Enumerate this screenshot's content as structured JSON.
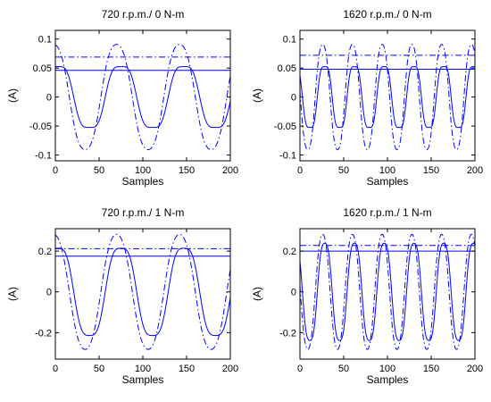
{
  "chart_data": [
    {
      "type": "line",
      "title": "720 r.p.m./ 0 N-m",
      "xlabel": "Samples",
      "ylabel": "(A)",
      "xlim": [
        0,
        200
      ],
      "ylim": [
        -0.11,
        0.115
      ],
      "xticks": [
        "0",
        "50",
        "100",
        "150",
        "200"
      ],
      "yticks": [
        "0.1",
        "0.05",
        "0",
        "-0.05",
        "-0.1"
      ],
      "ytick_values": [
        0.1,
        0.05,
        0,
        -0.05,
        -0.1
      ],
      "grid": false,
      "series": [
        {
          "style": "solid",
          "kind": "wave",
          "amplitude": 0.063,
          "period": 72,
          "phase_deg": 75,
          "distortion": 0.12
        },
        {
          "style": "dashdot",
          "kind": "wave",
          "amplitude": 0.098,
          "period": 72,
          "phase_deg": 100,
          "distortion": 0.05
        },
        {
          "style": "solid",
          "kind": "hline",
          "value": 0.046
        },
        {
          "style": "dashdot",
          "kind": "hline",
          "value": 0.069
        }
      ]
    },
    {
      "type": "line",
      "title": "1620 r.p.m./ 0 N-m",
      "xlabel": "Samples",
      "ylabel": "(A)",
      "xlim": [
        0,
        200
      ],
      "ylim": [
        -0.11,
        0.115
      ],
      "xticks": [
        "0",
        "50",
        "100",
        "150",
        "200"
      ],
      "yticks": [
        "0.1",
        "0.05",
        "0",
        "-0.05",
        "-0.1"
      ],
      "ytick_values": [
        0.1,
        0.05,
        0,
        -0.05,
        -0.1
      ],
      "grid": false,
      "series": [
        {
          "style": "solid",
          "kind": "wave",
          "amplitude": 0.063,
          "period": 34,
          "phase_deg": 150,
          "distortion": 0.12
        },
        {
          "style": "dashdot",
          "kind": "wave",
          "amplitude": 0.098,
          "period": 34,
          "phase_deg": 175,
          "distortion": 0.05
        },
        {
          "style": "solid",
          "kind": "hline",
          "value": 0.048
        },
        {
          "style": "dashdot",
          "kind": "hline",
          "value": 0.072
        }
      ]
    },
    {
      "type": "line",
      "title": "720 r.p.m./ 1 N-m",
      "xlabel": "Samples",
      "ylabel": "(A)",
      "xlim": [
        0,
        200
      ],
      "ylim": [
        -0.33,
        0.31
      ],
      "xticks": [
        "0",
        "50",
        "100",
        "150",
        "200"
      ],
      "yticks": [
        "0.2",
        "0",
        "-0.2"
      ],
      "ytick_values": [
        0.2,
        0,
        -0.2
      ],
      "grid": false,
      "series": [
        {
          "style": "solid",
          "kind": "wave",
          "amplitude": 0.25,
          "period": 72,
          "phase_deg": 75,
          "distortion": 0.1
        },
        {
          "style": "dashdot",
          "kind": "wave",
          "amplitude": 0.3,
          "period": 72,
          "phase_deg": 100,
          "distortion": 0.04
        },
        {
          "style": "solid",
          "kind": "hline",
          "value": 0.175
        },
        {
          "style": "dashdot",
          "kind": "hline",
          "value": 0.212
        }
      ]
    },
    {
      "type": "line",
      "title": "1620 r.p.m./ 1 N-m",
      "xlabel": "Samples",
      "ylabel": "(A)",
      "xlim": [
        0,
        200
      ],
      "ylim": [
        -0.33,
        0.31
      ],
      "xticks": [
        "0",
        "50",
        "100",
        "150",
        "200"
      ],
      "yticks": [
        "0.2",
        "0",
        "-0.2"
      ],
      "ytick_values": [
        0.2,
        0,
        -0.2
      ],
      "grid": false,
      "series": [
        {
          "style": "solid",
          "kind": "wave",
          "amplitude": 0.27,
          "period": 34,
          "phase_deg": 150,
          "distortion": 0.08
        },
        {
          "style": "dashdot",
          "kind": "wave",
          "amplitude": 0.3,
          "period": 34,
          "phase_deg": 175,
          "distortion": 0.04
        },
        {
          "style": "solid",
          "kind": "hline",
          "value": 0.2
        },
        {
          "style": "dashdot",
          "kind": "hline",
          "value": 0.228
        }
      ]
    }
  ],
  "colors": {
    "series": "#0000ff",
    "axes": "#000000",
    "background": "#ffffff"
  }
}
